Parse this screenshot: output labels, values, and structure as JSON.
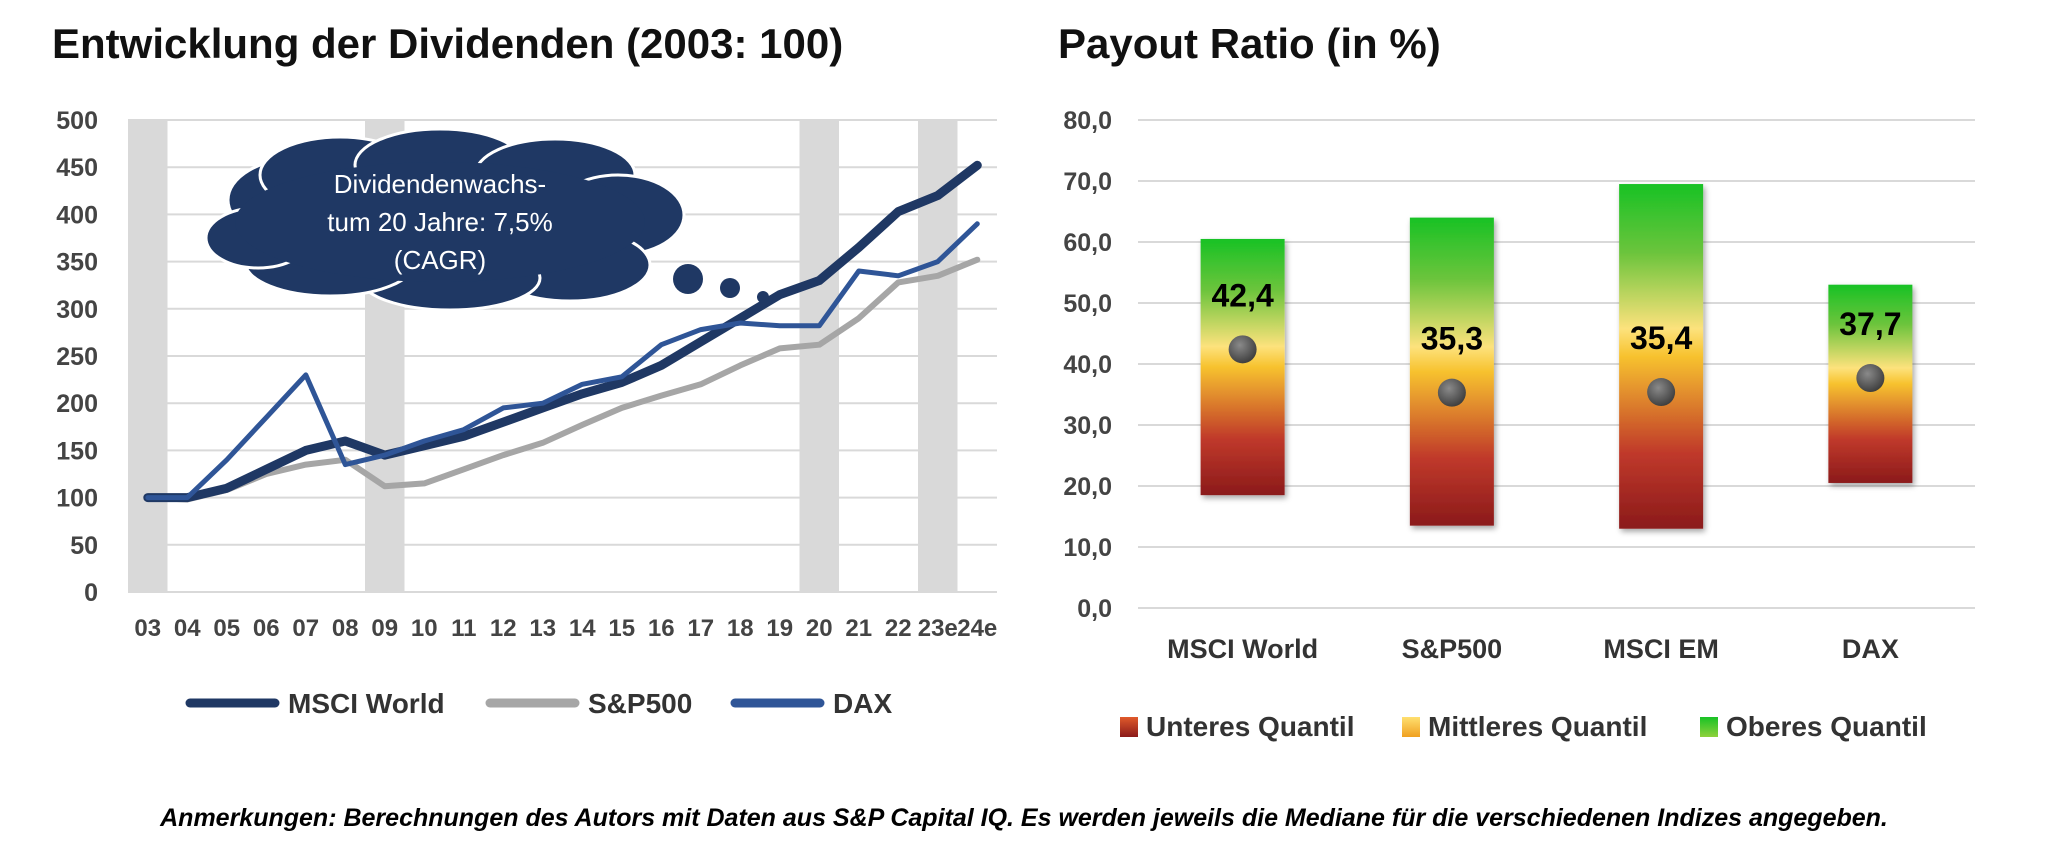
{
  "footnote": "Anmerkungen: Berechnungen des Autors mit Daten aus S&P Capital IQ. Es werden jeweils die Mediane für die verschiedenen Indizes angegeben.",
  "annotation": {
    "lines": [
      "Dividendenwachs-",
      "tum 20 Jahre: 7,5%",
      "(CAGR)"
    ],
    "color": "#1f3864"
  },
  "chart_data": [
    {
      "type": "line",
      "title": "Entwicklung der Dividenden (2003: 100)",
      "xlabel": "",
      "ylabel": "",
      "categories": [
        "03",
        "04",
        "05",
        "06",
        "07",
        "08",
        "09",
        "10",
        "11",
        "12",
        "13",
        "14",
        "15",
        "16",
        "17",
        "18",
        "19",
        "20",
        "21",
        "22",
        "23e",
        "24e"
      ],
      "ylim": [
        0,
        500
      ],
      "yticks": [
        0,
        50,
        100,
        150,
        200,
        250,
        300,
        350,
        400,
        450,
        500
      ],
      "grid": true,
      "shaded_categories": [
        "03",
        "09",
        "20",
        "23e"
      ],
      "shade_color": "#d9d9d9",
      "legend_position": "bottom",
      "series": [
        {
          "name": "MSCI World",
          "color": "#1f3864",
          "values": [
            100,
            100,
            110,
            130,
            150,
            160,
            145,
            155,
            165,
            180,
            195,
            210,
            222,
            240,
            265,
            290,
            315,
            330,
            365,
            403,
            420,
            452
          ]
        },
        {
          "name": "S&P500",
          "color": "#a6a6a6",
          "values": [
            100,
            98,
            108,
            125,
            135,
            140,
            112,
            115,
            130,
            145,
            158,
            177,
            195,
            208,
            220,
            240,
            258,
            262,
            290,
            328,
            335,
            352
          ]
        },
        {
          "name": "DAX",
          "color": "#2f5597",
          "values": [
            100,
            100,
            140,
            185,
            230,
            135,
            145,
            160,
            172,
            195,
            200,
            220,
            228,
            262,
            278,
            285,
            282,
            282,
            340,
            335,
            350,
            390
          ]
        }
      ]
    },
    {
      "type": "bar",
      "title": "Payout Ratio (in %)",
      "xlabel": "",
      "ylabel": "",
      "categories": [
        "MSCI World",
        "S&P500",
        "MSCI EM",
        "DAX"
      ],
      "ylim": [
        0,
        80
      ],
      "yticks": [
        "0,0",
        "10,0",
        "20,0",
        "30,0",
        "40,0",
        "50,0",
        "60,0",
        "70,0",
        "80,0"
      ],
      "grid": true,
      "legend_position": "bottom",
      "legend": [
        {
          "name": "Unteres Quantil",
          "color": "#c00000"
        },
        {
          "name": "Mittleres Quantil",
          "color": "#ffc000"
        },
        {
          "name": "Oberes Quantil",
          "color": "#00b050"
        }
      ],
      "ranges": [
        {
          "low": 18.5,
          "high": 60.5
        },
        {
          "low": 13.5,
          "high": 64.0
        },
        {
          "low": 13.0,
          "high": 69.5
        },
        {
          "low": 20.5,
          "high": 53.0
        }
      ],
      "median": [
        42.4,
        35.3,
        35.4,
        37.7
      ],
      "median_labels": [
        "42,4",
        "35,3",
        "35,4",
        "37,7"
      ]
    }
  ]
}
